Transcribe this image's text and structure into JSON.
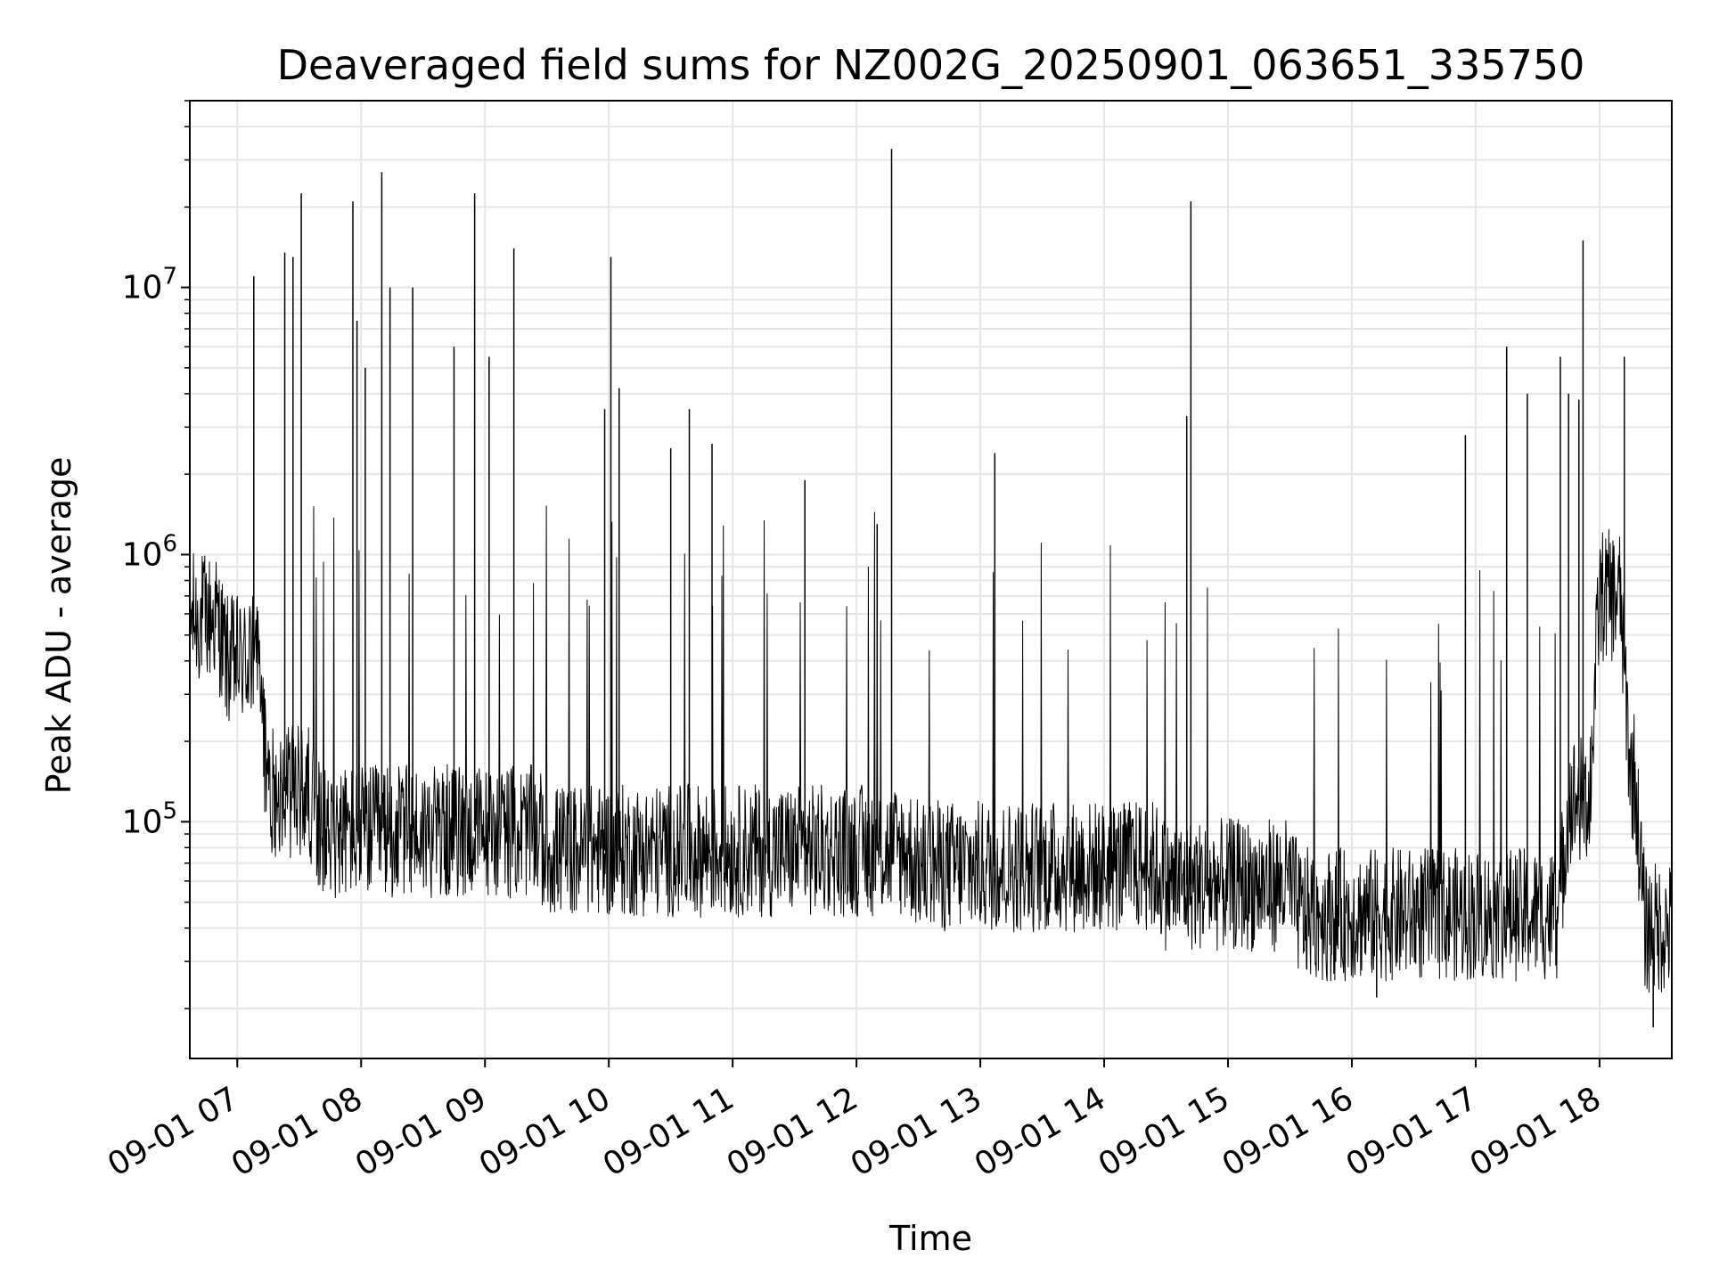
{
  "chart_data": {
    "type": "line",
    "title": "Deaveraged field sums for NZ002G_20250901_063651_335750",
    "xlabel": "Time",
    "ylabel": "Peak ADU - average",
    "x_ticks": [
      "09-01 07",
      "09-01 08",
      "09-01 09",
      "09-01 10",
      "09-01 11",
      "09-01 12",
      "09-01 13",
      "09-01 14",
      "09-01 15",
      "09-01 16",
      "09-01 17",
      "09-01 18"
    ],
    "y_ticks": [
      {
        "base": "10",
        "exp": "5"
      },
      {
        "base": "10",
        "exp": "6"
      },
      {
        "base": "10",
        "exp": "7"
      }
    ],
    "xlim": [
      "2025-09-01 06:37",
      "2025-09-01 18:35"
    ],
    "ylim": [
      13000,
      50000000
    ],
    "yscale": "log",
    "grid": true,
    "line_color": "#000000",
    "baseline_segments": [
      {
        "start": "2025-09-01 06:37",
        "end": "2025-09-01 06:55",
        "level": 580000
      },
      {
        "start": "2025-09-01 06:55",
        "end": "2025-09-01 07:15",
        "level": 400000
      },
      {
        "start": "2025-09-01 07:15",
        "end": "2025-09-01 07:40",
        "level": 130000
      },
      {
        "start": "2025-09-01 07:40",
        "end": "2025-09-01 09:30",
        "level": 92000
      },
      {
        "start": "2025-09-01 09:30",
        "end": "2025-09-01 12:30",
        "level": 78000
      },
      {
        "start": "2025-09-01 12:30",
        "end": "2025-09-01 14:30",
        "level": 68000
      },
      {
        "start": "2025-09-01 14:30",
        "end": "2025-09-01 15:35",
        "level": 58000
      },
      {
        "start": "2025-09-01 15:35",
        "end": "2025-09-01 17:45",
        "level": 45000
      },
      {
        "start": "2025-09-01 17:45",
        "end": "2025-09-01 18:00",
        "level": 120000
      },
      {
        "start": "2025-09-01 18:00",
        "end": "2025-09-01 18:15",
        "level": 700000
      },
      {
        "start": "2025-09-01 18:15",
        "end": "2025-09-01 18:22",
        "level": 150000
      },
      {
        "start": "2025-09-01 18:22",
        "end": "2025-09-01 18:35",
        "level": 40000
      }
    ],
    "spikes": [
      {
        "x": "2025-09-01 07:08",
        "y": 11000000
      },
      {
        "x": "2025-09-01 07:23",
        "y": 13500000
      },
      {
        "x": "2025-09-01 07:27",
        "y": 13000000
      },
      {
        "x": "2025-09-01 07:31",
        "y": 22500000
      },
      {
        "x": "2025-09-01 07:56",
        "y": 21000000
      },
      {
        "x": "2025-09-01 07:58",
        "y": 7500000
      },
      {
        "x": "2025-09-01 08:02",
        "y": 5000000
      },
      {
        "x": "2025-09-01 08:10",
        "y": 27000000
      },
      {
        "x": "2025-09-01 08:14",
        "y": 10000000
      },
      {
        "x": "2025-09-01 08:25",
        "y": 10000000
      },
      {
        "x": "2025-09-01 08:45",
        "y": 6000000
      },
      {
        "x": "2025-09-01 08:55",
        "y": 22500000
      },
      {
        "x": "2025-09-01 09:02",
        "y": 5500000
      },
      {
        "x": "2025-09-01 09:14",
        "y": 14000000
      },
      {
        "x": "2025-09-01 09:58",
        "y": 3500000
      },
      {
        "x": "2025-09-01 10:01",
        "y": 13000000
      },
      {
        "x": "2025-09-01 10:05",
        "y": 4200000
      },
      {
        "x": "2025-09-01 10:30",
        "y": 2500000
      },
      {
        "x": "2025-09-01 10:39",
        "y": 3500000
      },
      {
        "x": "2025-09-01 10:50",
        "y": 2600000
      },
      {
        "x": "2025-09-01 11:35",
        "y": 1900000
      },
      {
        "x": "2025-09-01 12:10",
        "y": 1300000
      },
      {
        "x": "2025-09-01 12:17",
        "y": 33000000
      },
      {
        "x": "2025-09-01 13:07",
        "y": 2400000
      },
      {
        "x": "2025-09-01 14:40",
        "y": 3300000
      },
      {
        "x": "2025-09-01 14:42",
        "y": 21000000
      },
      {
        "x": "2025-09-01 16:55",
        "y": 2800000
      },
      {
        "x": "2025-09-01 17:15",
        "y": 6000000
      },
      {
        "x": "2025-09-01 17:25",
        "y": 4000000
      },
      {
        "x": "2025-09-01 17:41",
        "y": 5500000
      },
      {
        "x": "2025-09-01 17:45",
        "y": 4000000
      },
      {
        "x": "2025-09-01 17:50",
        "y": 3800000
      },
      {
        "x": "2025-09-01 17:52",
        "y": 15000000
      },
      {
        "x": "2025-09-01 18:12",
        "y": 5500000
      }
    ],
    "dips": [
      {
        "x": "2025-09-01 16:12",
        "y": 22000
      },
      {
        "x": "2025-09-01 18:26",
        "y": 17000
      }
    ]
  }
}
